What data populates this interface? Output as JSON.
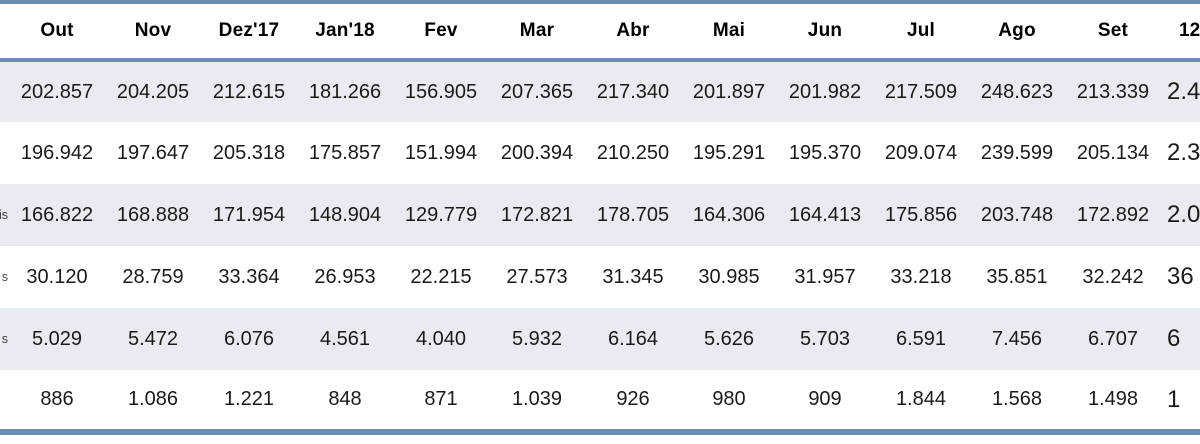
{
  "theme": {
    "border-blue": "#6C8CB3",
    "band-bg": "#E9EBF2",
    "row-bg": "#FFFFFF",
    "header-text": "#000000",
    "cell-text": "#1A1A1A",
    "fragment-text": "#404040"
  },
  "chart_data": {
    "type": "table",
    "column_headers": [
      "Out",
      "Nov",
      "Dez'17",
      "Jan'18",
      "Fev",
      "Mar",
      "Abr",
      "Mai",
      "Jun",
      "Jul",
      "Ago",
      "Set"
    ],
    "total_column_header_fragment": "12",
    "row_label_header": "",
    "rows": [
      {
        "label_fragment": "",
        "values": [
          "202.857",
          "204.205",
          "212.615",
          "181.266",
          "156.905",
          "207.365",
          "217.340",
          "201.897",
          "201.982",
          "217.509",
          "248.623",
          "213.339"
        ],
        "total_fragment": "2.4"
      },
      {
        "label_fragment": "",
        "values": [
          "196.942",
          "197.647",
          "205.318",
          "175.857",
          "151.994",
          "200.394",
          "210.250",
          "195.291",
          "195.370",
          "209.074",
          "239.599",
          "205.134"
        ],
        "total_fragment": "2.3"
      },
      {
        "label_fragment": "is",
        "values": [
          "166.822",
          "168.888",
          "171.954",
          "148.904",
          "129.779",
          "172.821",
          "178.705",
          "164.306",
          "164.413",
          "175.856",
          "203.748",
          "172.892"
        ],
        "total_fragment": "2.0"
      },
      {
        "label_fragment": "s",
        "values": [
          "30.120",
          "28.759",
          "33.364",
          "26.953",
          "22.215",
          "27.573",
          "31.345",
          "30.985",
          "31.957",
          "33.218",
          "35.851",
          "32.242"
        ],
        "total_fragment": "36"
      },
      {
        "label_fragment": "s",
        "values": [
          "5.029",
          "5.472",
          "6.076",
          "4.561",
          "4.040",
          "5.932",
          "6.164",
          "5.626",
          "5.703",
          "6.591",
          "7.456",
          "6.707"
        ],
        "total_fragment": "6"
      },
      {
        "label_fragment": "",
        "values": [
          "886",
          "1.086",
          "1.221",
          "848",
          "871",
          "1.039",
          "926",
          "980",
          "909",
          "1.844",
          "1.568",
          "1.498"
        ],
        "total_fragment": "1"
      }
    ]
  }
}
